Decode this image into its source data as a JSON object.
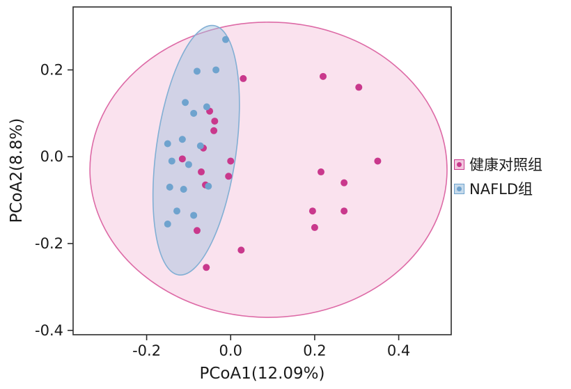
{
  "figure": {
    "background": "#ffffff",
    "border_color": "#2b2b2b"
  },
  "chart_data": {
    "type": "scatter",
    "title": "",
    "xlabel": "PCoA1(12.09%)",
    "ylabel": "PCoA2(8.8%)",
    "xlim": [
      -0.375,
      0.525
    ],
    "ylim": [
      -0.41,
      0.345
    ],
    "xticks": [
      -0.2,
      0.0,
      0.2,
      0.4
    ],
    "xtick_labels": [
      "-0.2",
      "0.0",
      "0.2",
      "0.4"
    ],
    "yticks": [
      -0.4,
      -0.2,
      0.0,
      0.2
    ],
    "ytick_labels": [
      "-0.4",
      "-0.2",
      "0.0",
      "0.2"
    ],
    "grid": false,
    "legend_position": "right",
    "series": [
      {
        "name": "健康对照组",
        "color": "#C9388C",
        "color_light": "#F2C7DE",
        "points": [
          [
            0.03,
            0.18
          ],
          [
            0.22,
            0.185
          ],
          [
            0.305,
            0.16
          ],
          [
            0.35,
            -0.01
          ],
          [
            0.215,
            -0.035
          ],
          [
            0.27,
            -0.06
          ],
          [
            0.195,
            -0.125
          ],
          [
            0.27,
            -0.125
          ],
          [
            0.2,
            -0.163
          ],
          [
            0.025,
            -0.215
          ],
          [
            -0.058,
            -0.255
          ],
          [
            -0.08,
            -0.17
          ],
          [
            -0.005,
            -0.045
          ],
          [
            0.0,
            -0.01
          ],
          [
            -0.07,
            -0.035
          ],
          [
            -0.065,
            0.02
          ],
          [
            -0.04,
            0.06
          ],
          [
            -0.038,
            0.082
          ],
          [
            -0.05,
            0.105
          ],
          [
            -0.115,
            -0.005
          ],
          [
            -0.06,
            -0.065
          ]
        ],
        "ellipse": {
          "cx": 0.09,
          "cy": -0.03,
          "rx": 0.425,
          "ry": 0.34,
          "angle_deg": 0,
          "fill": "#F5CBE0",
          "fill_opacity": 0.55,
          "stroke": "#DD6AA6",
          "stroke_width": 1.6
        }
      },
      {
        "name": "NAFLD组",
        "color": "#6FA3CE",
        "color_light": "#C6DAEB",
        "points": [
          [
            -0.012,
            0.27
          ],
          [
            -0.035,
            0.2
          ],
          [
            -0.08,
            0.197
          ],
          [
            -0.108,
            0.125
          ],
          [
            -0.057,
            0.115
          ],
          [
            -0.088,
            0.1
          ],
          [
            -0.15,
            0.03
          ],
          [
            -0.115,
            0.04
          ],
          [
            -0.072,
            0.025
          ],
          [
            -0.14,
            -0.01
          ],
          [
            -0.1,
            -0.018
          ],
          [
            -0.145,
            -0.07
          ],
          [
            -0.112,
            -0.075
          ],
          [
            -0.053,
            -0.068
          ],
          [
            -0.128,
            -0.125
          ],
          [
            -0.088,
            -0.135
          ],
          [
            -0.15,
            -0.155
          ]
        ],
        "ellipse": {
          "cx": -0.082,
          "cy": 0.015,
          "rx": 0.095,
          "ry": 0.29,
          "angle_deg": 8,
          "fill": "#9FBEDC",
          "fill_opacity": 0.45,
          "stroke": "#82AFD4",
          "stroke_width": 1.6
        }
      }
    ]
  }
}
